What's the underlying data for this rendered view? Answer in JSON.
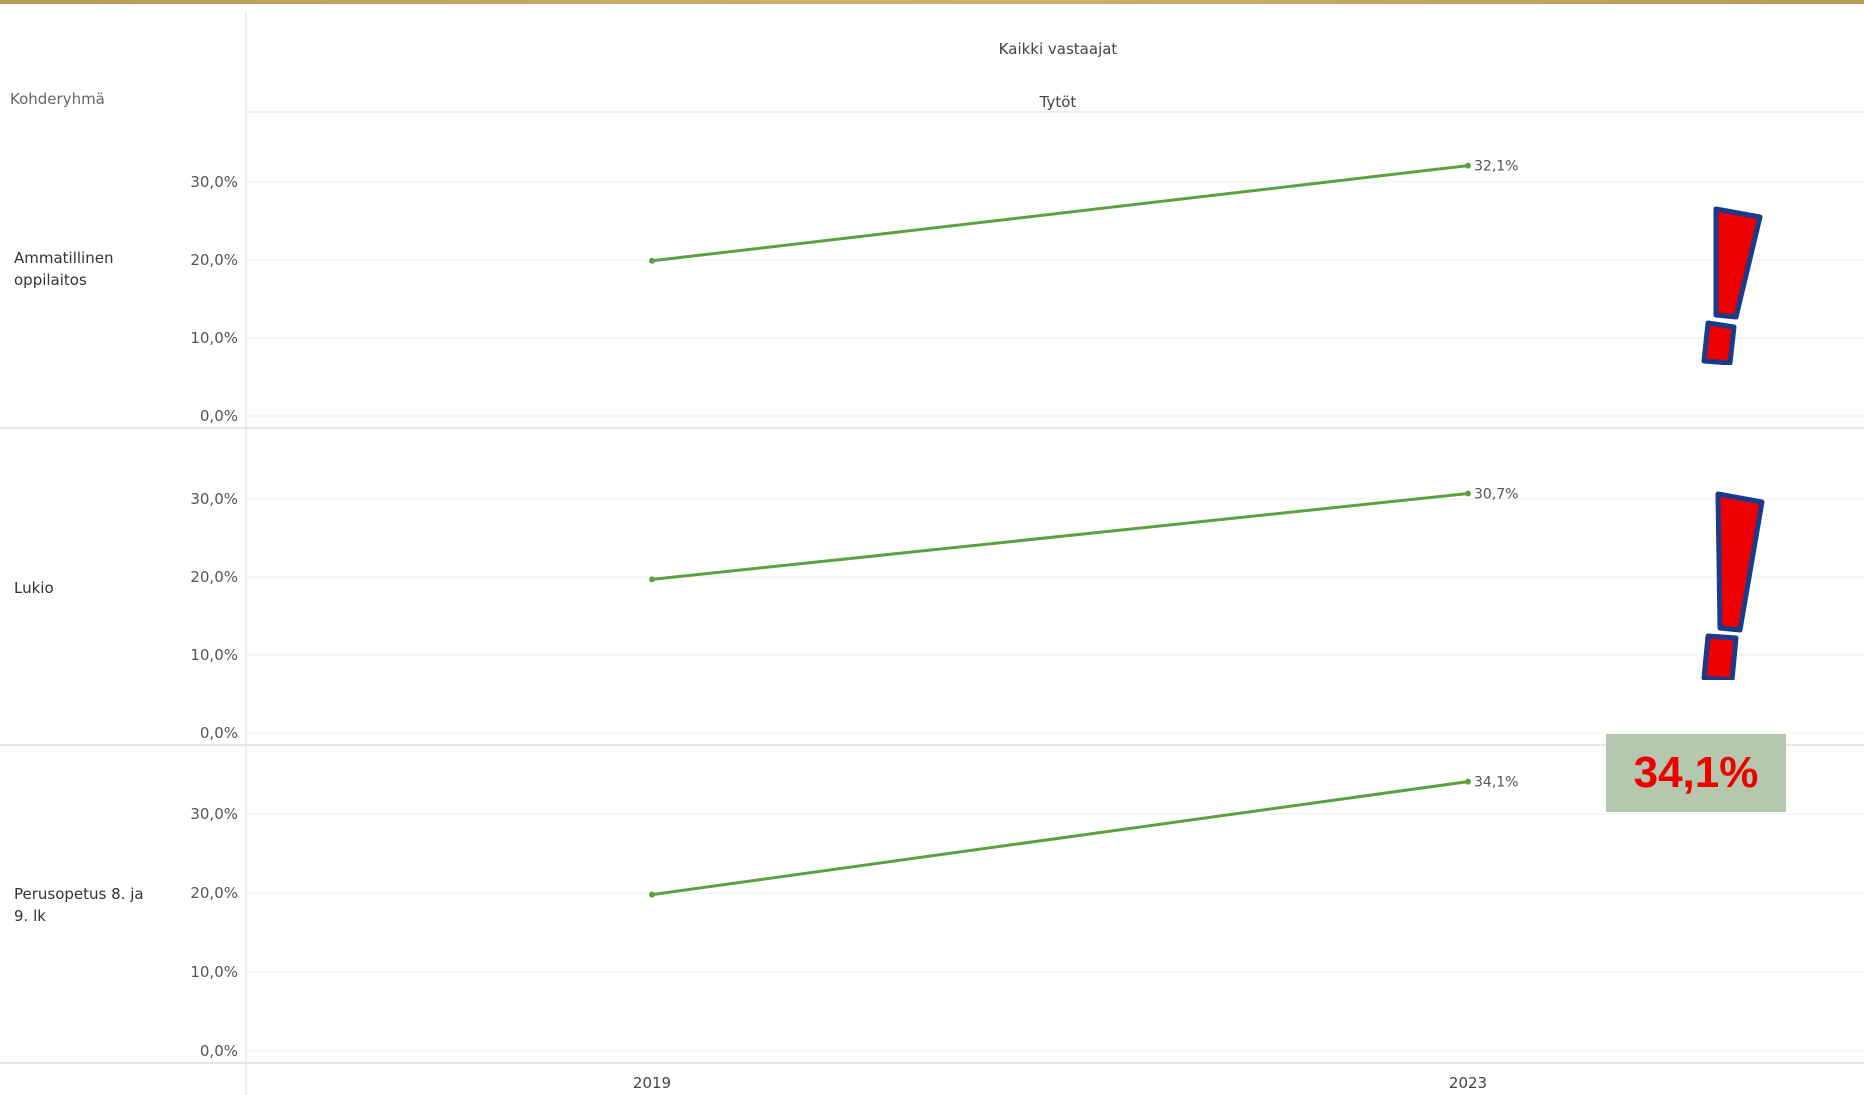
{
  "header": {
    "top_title": "Kaikki vastaajat",
    "sub_title": "Tytöt",
    "row_group_label": "Kohderyhmä"
  },
  "colors": {
    "line": "#5aa13f",
    "gridline": "#eeeeee",
    "exclamation_fill": "#ee0000",
    "exclamation_stroke": "#1a3a8a",
    "callout_bg": "#b5c8ad",
    "callout_text": "#ee0000"
  },
  "callout": {
    "text": "34,1%"
  },
  "chart_data": {
    "type": "line",
    "x": [
      "2019",
      "2023"
    ],
    "y_ticks": [
      "0,0%",
      "10,0%",
      "20,0%",
      "30,0%"
    ],
    "ylim": [
      0,
      35
    ],
    "panels": [
      {
        "name": "Ammatillinen oppilaitos",
        "values": [
          19.9,
          32.1
        ],
        "end_label": "32,1%"
      },
      {
        "name": "Lukio",
        "values": [
          19.7,
          30.7
        ],
        "end_label": "30,7%"
      },
      {
        "name": "Perusopetus 8. ja 9. lk",
        "values": [
          19.8,
          34.1
        ],
        "end_label": "34,1%"
      }
    ]
  }
}
